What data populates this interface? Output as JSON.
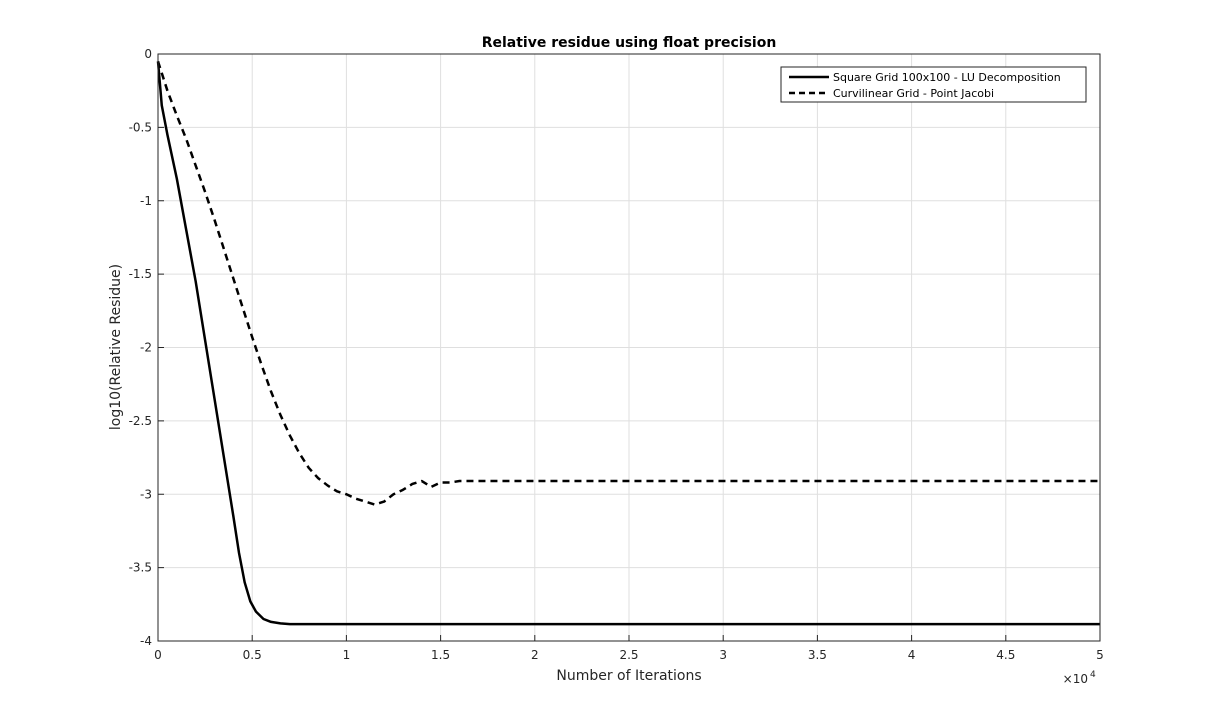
{
  "chart_data": {
    "type": "line",
    "title": "Relative residue using float precision",
    "xlabel": "Number of Iterations",
    "ylabel": "log10(Relative Residue)",
    "x_exponent_label": "×10",
    "x_exponent_power": "4",
    "xlim": [
      0,
      50000
    ],
    "ylim": [
      -4,
      0
    ],
    "x_ticks": [
      0,
      5000,
      10000,
      15000,
      20000,
      25000,
      30000,
      35000,
      40000,
      45000,
      50000
    ],
    "x_tick_labels": [
      "0",
      "0.5",
      "1",
      "1.5",
      "2",
      "2.5",
      "3",
      "3.5",
      "4",
      "4.5",
      "5"
    ],
    "y_ticks": [
      0,
      -0.5,
      -1,
      -1.5,
      -2,
      -2.5,
      -3,
      -3.5,
      -4
    ],
    "y_tick_labels": [
      "0",
      "-0.5",
      "-1",
      "-1.5",
      "-2",
      "-2.5",
      "-3",
      "-3.5",
      "-4"
    ],
    "grid": true,
    "legend_position": "top-right",
    "series": [
      {
        "name": "Square Grid 100x100 - LU Decomposition",
        "style": "solid",
        "color": "#000000",
        "x": [
          0,
          200,
          500,
          1000,
          1500,
          2000,
          2500,
          3000,
          3500,
          4000,
          4300,
          4600,
          4900,
          5200,
          5600,
          6000,
          6500,
          7000,
          8000,
          10000,
          20000,
          30000,
          40000,
          50000
        ],
        "y": [
          -0.05,
          -0.35,
          -0.55,
          -0.85,
          -1.2,
          -1.55,
          -1.95,
          -2.35,
          -2.75,
          -3.15,
          -3.4,
          -3.6,
          -3.73,
          -3.8,
          -3.85,
          -3.87,
          -3.88,
          -3.885,
          -3.885,
          -3.885,
          -3.885,
          -3.885,
          -3.885,
          -3.885
        ]
      },
      {
        "name": "Curvilinear Grid - Point Jacobi",
        "style": "dashed",
        "color": "#000000",
        "x": [
          0,
          500,
          1000,
          1500,
          2000,
          2500,
          3000,
          3500,
          4000,
          4500,
          5000,
          5500,
          6000,
          6500,
          7000,
          7500,
          8000,
          8500,
          9000,
          9500,
          10000,
          10500,
          11000,
          11500,
          12000,
          12500,
          13000,
          13500,
          14000,
          14500,
          15000,
          15500,
          16000,
          20000,
          30000,
          40000,
          50000
        ],
        "y": [
          -0.05,
          -0.25,
          -0.42,
          -0.58,
          -0.76,
          -0.94,
          -1.13,
          -1.33,
          -1.53,
          -1.73,
          -1.93,
          -2.12,
          -2.3,
          -2.46,
          -2.6,
          -2.72,
          -2.82,
          -2.89,
          -2.94,
          -2.98,
          -3.0,
          -3.03,
          -3.05,
          -3.07,
          -3.05,
          -3.0,
          -2.97,
          -2.93,
          -2.91,
          -2.95,
          -2.92,
          -2.92,
          -2.91,
          -2.91,
          -2.91,
          -2.91,
          -2.91
        ]
      }
    ]
  }
}
